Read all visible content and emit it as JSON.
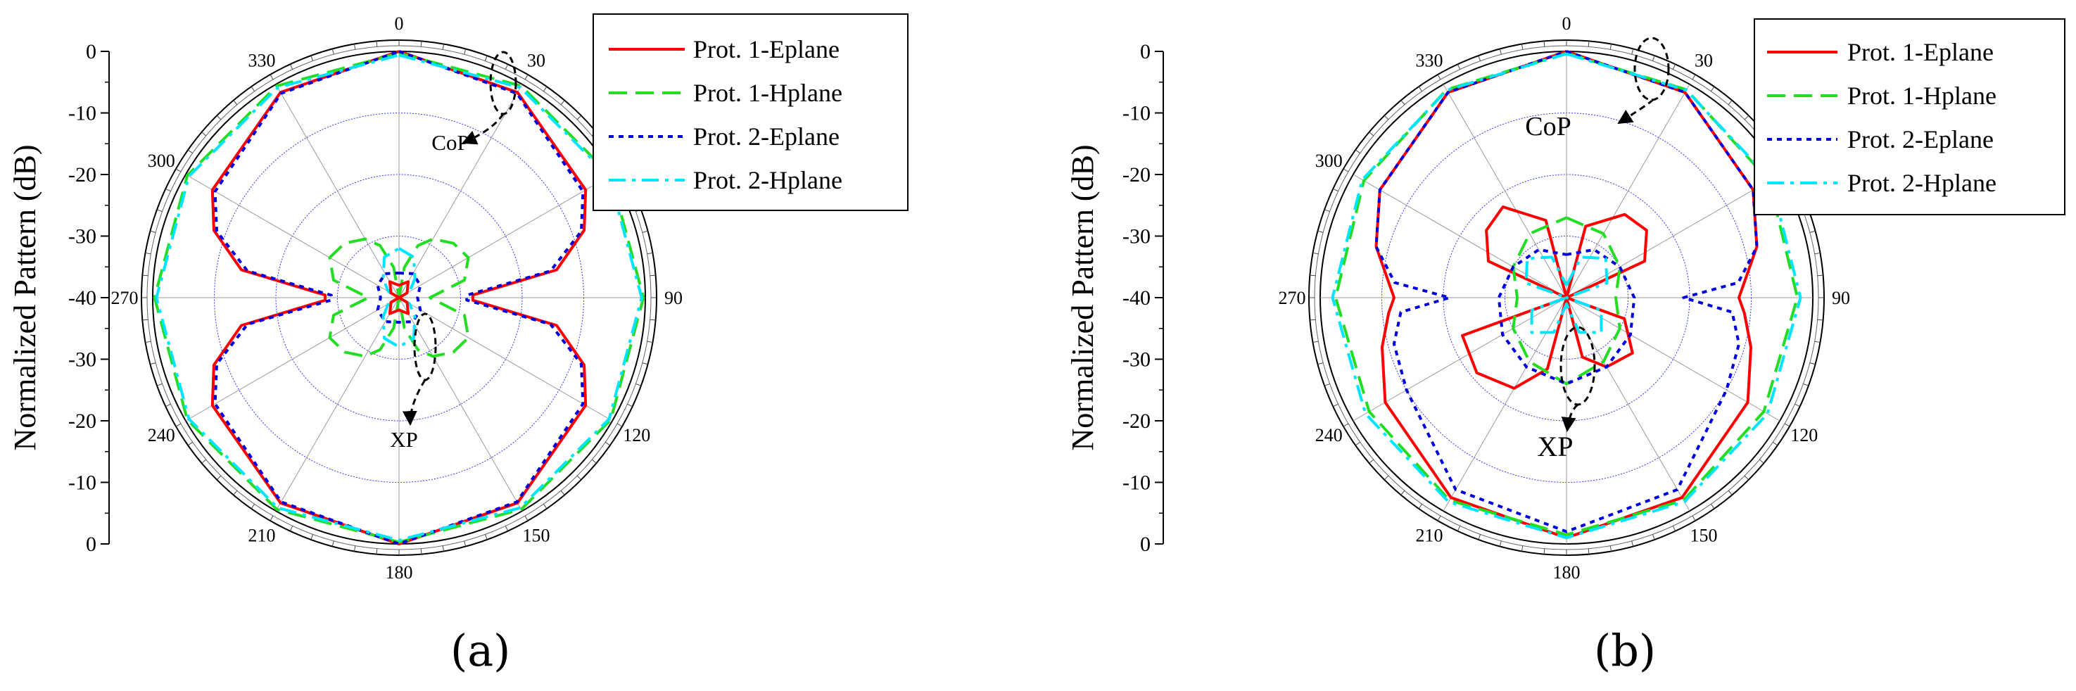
{
  "figure": {
    "panel_a_label": "(a)",
    "panel_b_label": "(b)"
  },
  "chart_data": [
    {
      "type": "polar-line",
      "panel": "a",
      "ylabel": "Normalized Pattern (dB)",
      "r_range": [
        -40,
        0
      ],
      "r_ticks": [
        0,
        -10,
        -20,
        -30,
        -40
      ],
      "angle_ticks": [
        0,
        30,
        60,
        90,
        120,
        150,
        180,
        210,
        240,
        270,
        300,
        330
      ],
      "angle_tick_labels": [
        "0",
        "30",
        "",
        "90",
        "120",
        "150",
        "180",
        "210",
        "240",
        "270",
        "300",
        "330"
      ],
      "legend": {
        "placement": "top-right"
      },
      "annotations": [
        "CoP",
        "XP"
      ],
      "series": [
        {
          "name": "Prot. 1-Eplane",
          "color": "#ff0000",
          "dash": "solid",
          "angles": [
            0,
            30,
            60,
            70,
            80,
            88,
            92,
            100,
            110,
            120,
            150,
            180,
            210,
            240,
            250,
            260,
            268,
            272,
            280,
            290,
            300,
            330,
            360
          ],
          "values": [
            0,
            -1.5,
            -5,
            -8,
            -14,
            -28,
            -28,
            -14,
            -8,
            -5,
            -1.5,
            0,
            -1.5,
            -5,
            -8,
            -14,
            -28,
            -28,
            -14,
            -8,
            -5,
            -1.5,
            0
          ]
        },
        {
          "name": "Prot. 1-Hplane",
          "color": "#22dd22",
          "dash": "dash",
          "angles": [
            0,
            30,
            60,
            90,
            120,
            150,
            180,
            210,
            240,
            270,
            300,
            330,
            360
          ],
          "values": [
            -0.3,
            -0.3,
            -0.3,
            -0.3,
            -0.3,
            -0.3,
            -0.3,
            -0.3,
            -0.3,
            -0.3,
            -0.3,
            -0.3,
            -0.3
          ]
        },
        {
          "name": "Prot. 2-Eplane",
          "color": "#0000dd",
          "dash": "dot",
          "angles": [
            0,
            30,
            60,
            70,
            80,
            88,
            92,
            100,
            110,
            120,
            150,
            180,
            210,
            240,
            250,
            260,
            268,
            272,
            280,
            290,
            300,
            330,
            360
          ],
          "values": [
            0,
            -1.7,
            -5.5,
            -8.5,
            -15,
            -29,
            -29,
            -15,
            -8.5,
            -5.5,
            -1.7,
            0,
            -1.7,
            -5.5,
            -8.5,
            -15,
            -29,
            -29,
            -15,
            -8.5,
            -5.5,
            -1.7,
            0
          ]
        },
        {
          "name": "Prot. 2-Hplane",
          "color": "#00e5ff",
          "dash": "dashdot",
          "angles": [
            0,
            30,
            60,
            90,
            120,
            150,
            180,
            210,
            240,
            270,
            300,
            330,
            360
          ],
          "values": [
            -0.6,
            -0.6,
            -0.6,
            -0.6,
            -0.6,
            -0.6,
            -0.6,
            -0.6,
            -0.6,
            -0.6,
            -0.6,
            -0.6,
            -0.6
          ]
        },
        {
          "name": "",
          "color": "#22dd22",
          "dash": "dash",
          "angles": [
            0,
            10,
            20,
            30,
            45,
            60,
            75,
            90,
            105,
            120,
            135,
            150,
            160,
            170,
            180,
            190,
            200,
            210,
            225,
            240,
            255,
            270,
            285,
            300,
            315,
            330,
            340,
            350,
            360
          ],
          "values": [
            -40,
            -35,
            -31,
            -29,
            -27.5,
            -27,
            -29,
            -35,
            -29,
            -27,
            -27.5,
            -29,
            -31,
            -35,
            -40,
            -35,
            -31,
            -29,
            -27.5,
            -27,
            -29,
            -35,
            -29,
            -27,
            -27.5,
            -29,
            -31,
            -35,
            -40
          ]
        },
        {
          "name": "",
          "color": "#0000dd",
          "dash": "dot",
          "angles": [
            0,
            30,
            60,
            90,
            120,
            150,
            180,
            210,
            240,
            270,
            300,
            330,
            360
          ],
          "values": [
            -36,
            -35.5,
            -36,
            -37,
            -36,
            -35.5,
            -36,
            -35.5,
            -36,
            -37,
            -36,
            -35.5,
            -36
          ]
        },
        {
          "name": "",
          "color": "#00e5ff",
          "dash": "dashdot",
          "angles": [
            0,
            20,
            40,
            60,
            90,
            120,
            140,
            160,
            180,
            200,
            220,
            240,
            270,
            300,
            320,
            340,
            360
          ],
          "values": [
            -32,
            -33,
            -36,
            -38,
            -40,
            -38,
            -36,
            -33,
            -32,
            -33,
            -36,
            -38,
            -40,
            -38,
            -36,
            -33,
            -32
          ]
        },
        {
          "name": "",
          "color": "#ff0000",
          "dash": "solid",
          "angles": [
            0,
            30,
            60,
            90,
            120,
            150,
            180,
            210,
            240,
            270,
            300,
            330,
            360
          ],
          "values": [
            -38,
            -37,
            -38.5,
            -40,
            -38.5,
            -37,
            -38,
            -37,
            -38.5,
            -40,
            -38.5,
            -37,
            -38
          ]
        }
      ]
    },
    {
      "type": "polar-line",
      "panel": "b",
      "ylabel": "Normalized Pattern (dB)",
      "r_range": [
        -40,
        0
      ],
      "r_ticks": [
        0,
        -10,
        -20,
        -30,
        -40
      ],
      "angle_ticks": [
        0,
        30,
        60,
        90,
        120,
        150,
        180,
        210,
        240,
        270,
        300,
        330
      ],
      "angle_tick_labels": [
        "0",
        "30",
        "",
        "90",
        "120",
        "150",
        "180",
        "210",
        "240",
        "270",
        "300",
        "330"
      ],
      "legend": {
        "placement": "top-right"
      },
      "annotations": [
        "CoP",
        "XP"
      ],
      "series": [
        {
          "name": "Prot. 1-Eplane",
          "color": "#ff0000",
          "dash": "solid",
          "angles": [
            0,
            30,
            60,
            75,
            85,
            90,
            95,
            105,
            120,
            150,
            180,
            210,
            240,
            255,
            265,
            270,
            275,
            285,
            300,
            330,
            360
          ],
          "values": [
            0,
            -1.5,
            -5,
            -8,
            -11,
            -12,
            -11,
            -9,
            -6,
            -2.5,
            -1,
            -2.5,
            -6,
            -9,
            -11,
            -12,
            -11,
            -8,
            -5,
            -1.5,
            0
          ]
        },
        {
          "name": "Prot. 1-Hplane",
          "color": "#22dd22",
          "dash": "dash",
          "angles": [
            0,
            30,
            60,
            90,
            120,
            150,
            180,
            210,
            240,
            270,
            300,
            330,
            360
          ],
          "values": [
            -0.3,
            -1,
            -2,
            -2.5,
            -3,
            -2,
            -1.5,
            -2,
            -3,
            -2.5,
            -2,
            -1,
            -0.3
          ]
        },
        {
          "name": "Prot. 2-Eplane",
          "color": "#0000dd",
          "dash": "dot",
          "angles": [
            0,
            30,
            60,
            75,
            85,
            90,
            95,
            105,
            120,
            150,
            180,
            210,
            240,
            255,
            265,
            270,
            275,
            285,
            300,
            330,
            360
          ],
          "values": [
            0,
            -1.5,
            -5,
            -8,
            -12,
            -21,
            -13,
            -11,
            -10,
            -4,
            -2,
            -4,
            -10,
            -11,
            -13,
            -21,
            -12,
            -8,
            -5,
            -1.5,
            0
          ]
        },
        {
          "name": "Prot. 2-Hplane",
          "color": "#00e5ff",
          "dash": "dashdot",
          "angles": [
            0,
            30,
            60,
            90,
            120,
            150,
            180,
            210,
            240,
            270,
            300,
            330,
            360
          ],
          "values": [
            -0.4,
            -1.1,
            -1.7,
            -2,
            -2.3,
            -1.7,
            -1,
            -1.7,
            -2.3,
            -2,
            -1.7,
            -1.1,
            -0.4
          ]
        },
        {
          "name": "",
          "color": "#ff0000",
          "dash": "solid",
          "angles": [
            0,
            15,
            35,
            50,
            65,
            90,
            110,
            130,
            150,
            165,
            180,
            195,
            210,
            230,
            250,
            270,
            295,
            310,
            325,
            345,
            360
          ],
          "values": [
            -40,
            -28,
            -23.5,
            -23,
            -26,
            -40,
            -30,
            -26,
            -27,
            -30,
            -40,
            -28,
            -23,
            -21,
            -22,
            -40,
            -26,
            -23,
            -22,
            -27,
            -40
          ]
        },
        {
          "name": "",
          "color": "#22dd22",
          "dash": "dash",
          "angles": [
            0,
            30,
            60,
            90,
            120,
            150,
            180,
            210,
            240,
            270,
            300,
            330,
            360
          ],
          "values": [
            -27,
            -28,
            -30,
            -32,
            -30,
            -28,
            -26,
            -28,
            -30,
            -32,
            -30,
            -28,
            -27
          ]
        },
        {
          "name": "",
          "color": "#0000dd",
          "dash": "dot",
          "angles": [
            0,
            30,
            60,
            90,
            120,
            150,
            180,
            210,
            240,
            270,
            300,
            330,
            360
          ],
          "values": [
            -33,
            -31,
            -30,
            -29,
            -28,
            -27,
            -26,
            -27,
            -28,
            -29,
            -30,
            -31,
            -33
          ]
        },
        {
          "name": "",
          "color": "#00e5ff",
          "dash": "dashdot",
          "angles": [
            0,
            20,
            45,
            70,
            90,
            110,
            135,
            160,
            180,
            200,
            225,
            250,
            270,
            290,
            315,
            340,
            360
          ],
          "values": [
            -38,
            -33,
            -31,
            -33,
            -40,
            -34,
            -32,
            -34,
            -39,
            -34,
            -32,
            -34,
            -40,
            -33,
            -31,
            -33,
            -38
          ]
        }
      ]
    }
  ]
}
